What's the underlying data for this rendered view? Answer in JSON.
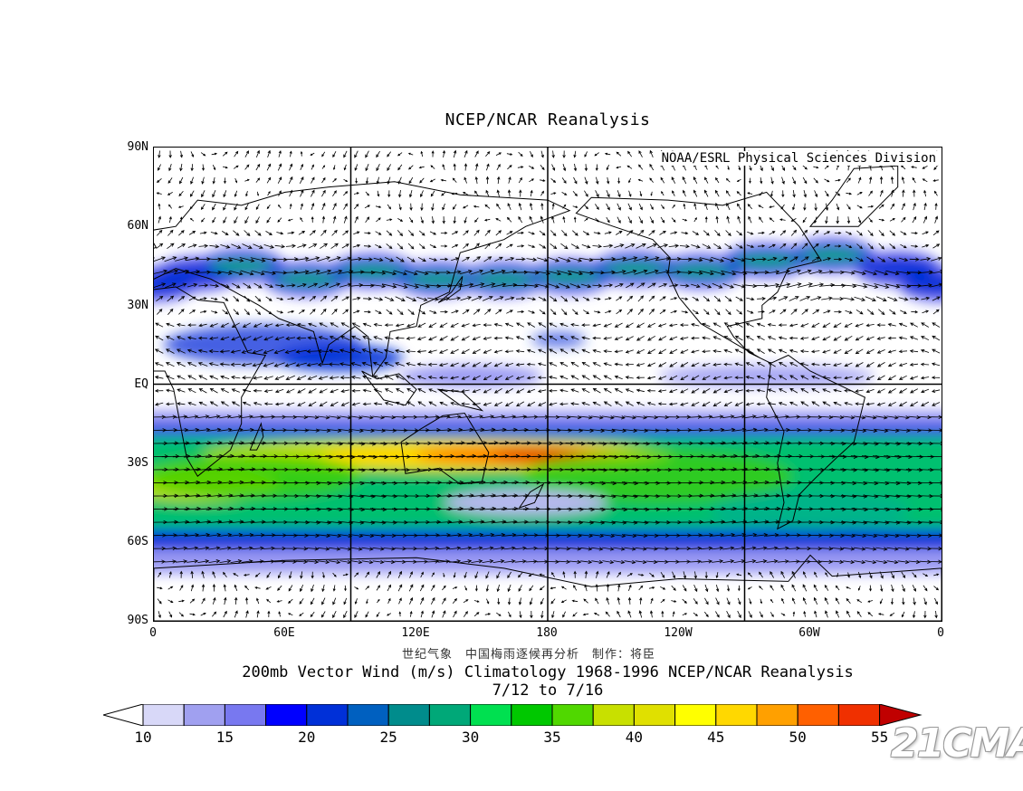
{
  "title": "NCEP/NCAR Reanalysis",
  "credit": "NOAA/ESRL Physical Sciences Division",
  "latitude_labels": [
    "90N",
    "60N",
    "30N",
    "EQ",
    "30S",
    "60S",
    "90S"
  ],
  "longitude_labels": [
    "0",
    "60E",
    "120E",
    "180",
    "120W",
    "60W",
    "0"
  ],
  "subnote": "世纪气象　中国梅雨逐候再分析　制作：将臣",
  "caption_line1": "200mb Vector Wind (m/s) Climatology 1968-1996 NCEP/NCAR Reanalysis",
  "caption_line2": "7/12  to 7/16",
  "colorbar": {
    "labels": [
      "10",
      "15",
      "20",
      "25",
      "30",
      "35",
      "40",
      "45",
      "50",
      "55"
    ],
    "colors": [
      "#d8d8f8",
      "#a0a0f0",
      "#7878f0",
      "#0000ff",
      "#0030d8",
      "#0060c0",
      "#008c8c",
      "#00a878",
      "#00e050",
      "#00c800",
      "#50d800",
      "#c8e000",
      "#e0e000",
      "#ffff00",
      "#ffd800",
      "#ffa000",
      "#ff6000",
      "#f03000",
      "#c00000"
    ]
  },
  "watermark": "21CMA",
  "map": {
    "ocean_color": "#ffffff",
    "coast_color": "#000000",
    "wind_speed_units": "m/s"
  }
}
